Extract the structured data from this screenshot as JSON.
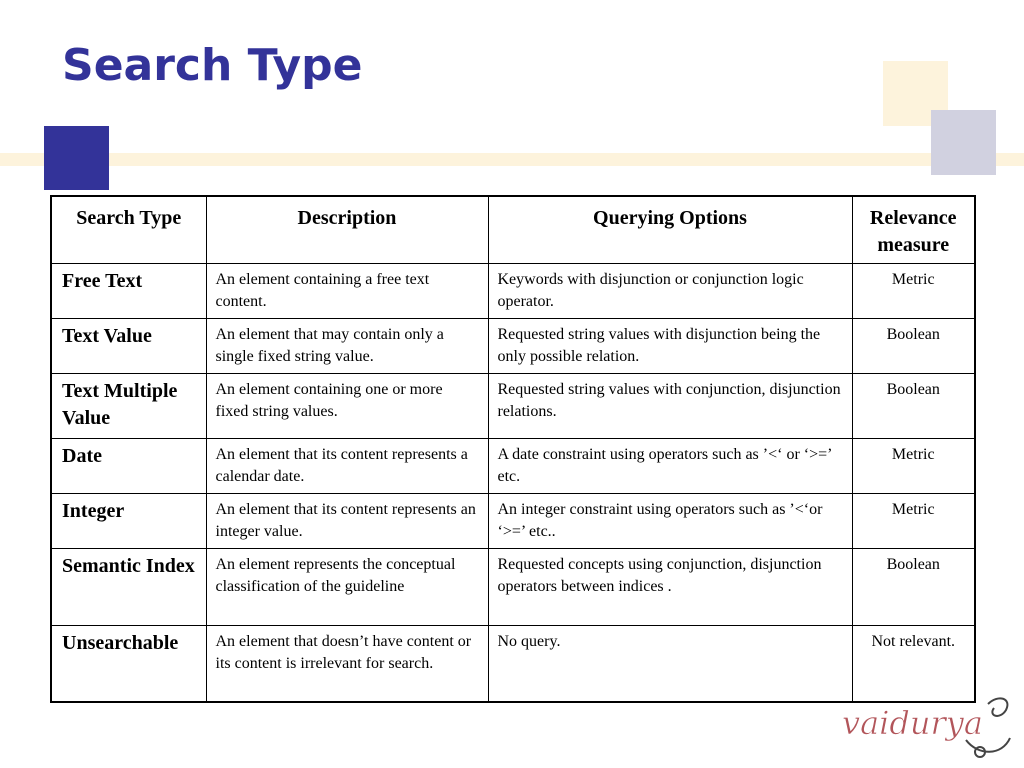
{
  "slide": {
    "title": "Search Type",
    "logo_text": "vaidurya",
    "accent_color": "#333399"
  },
  "table": {
    "headers": [
      "Search Type",
      "Description",
      "Querying Options",
      "Relevance measure"
    ],
    "rows": [
      {
        "type": "Free Text",
        "description": "An element containing a free text content.",
        "options": "Keywords with disjunction or conjunction logic operator.",
        "relevance": "Metric"
      },
      {
        "type": "Text Value",
        "description": "An element that may contain only a single fixed string value.",
        "options": "Requested string values with disjunction being the only possible relation.",
        "relevance": "Boolean"
      },
      {
        "type": "Text Multiple Value",
        "description": "An element containing one or more fixed string values.",
        "options": "Requested string values with conjunction, disjunction relations.",
        "relevance": "Boolean"
      },
      {
        "type": "Date",
        "description": "An element that its content represents a calendar date.",
        "options": "A date constraint using operators such as ’<‘ or ‘>=’ etc.",
        "relevance": "Metric"
      },
      {
        "type": "Integer",
        "description": "An element that its content represents an integer value.",
        "options": "An integer constraint using operators such as  ’<‘or ‘>=’ etc..",
        "relevance": "Metric"
      },
      {
        "type": "Semantic Index",
        "description": "An element represents the conceptual classification of the guideline",
        "options": "Requested concepts using conjunction, disjunction operators between indices .",
        "relevance": "Boolean"
      },
      {
        "type": "Unsearchable",
        "description": "An element that doesn’t have content or its content is irrelevant for search.",
        "options": "No query.",
        "relevance": "Not relevant."
      }
    ]
  }
}
